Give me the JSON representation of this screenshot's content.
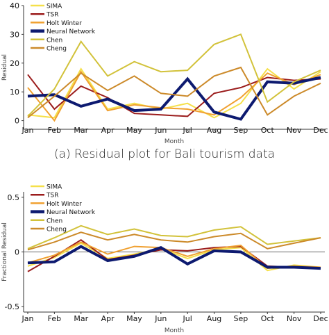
{
  "caption_a": "(a) Residual plot for Bali tourism data",
  "chart_data": [
    {
      "type": "line",
      "xlabel": "Month",
      "ylabel": "Residual",
      "categories": [
        "Jan",
        "Feb",
        "Mar",
        "Apr",
        "May",
        "Jun",
        "Jul",
        "Aug",
        "Sep",
        "Oct",
        "Nov",
        "Dec"
      ],
      "ylim": [
        -3,
        40
      ],
      "yticks": [
        "0",
        "10",
        "20",
        "30",
        "40"
      ],
      "ytick_values": [
        0,
        10,
        20,
        30,
        40
      ],
      "grid": false,
      "legend_position": "top-left",
      "series": [
        {
          "name": "SIMA",
          "color": "#f5e04a",
          "width": 2,
          "values": [
            2,
            1,
            18,
            4,
            6,
            4,
            6,
            1,
            6,
            18,
            11,
            17
          ]
        },
        {
          "name": "TSR",
          "color": "#9b1c1c",
          "width": 2,
          "values": [
            16,
            4,
            12,
            8,
            2.5,
            2,
            1.5,
            9.5,
            11.5,
            15,
            14,
            14.5
          ]
        },
        {
          "name": "Holt Winter",
          "color": "#f0a030",
          "width": 2,
          "values": [
            11.5,
            0,
            17,
            3.5,
            5.5,
            4.5,
            4,
            2,
            8,
            16.5,
            12.5,
            16
          ]
        },
        {
          "name": "Neural Network",
          "color": "#0d1a70",
          "width": 4,
          "values": [
            8.5,
            9,
            5,
            7.5,
            3.5,
            4,
            14.5,
            3,
            0.5,
            13.5,
            13,
            15
          ]
        },
        {
          "name": "Chen",
          "color": "#d2c23a",
          "width": 2,
          "values": [
            1.5,
            11,
            27.5,
            15.5,
            20.5,
            17,
            17.5,
            26.5,
            30,
            6.5,
            13.5,
            17.5
          ]
        },
        {
          "name": "Cheng",
          "color": "#cc8a2a",
          "width": 2,
          "values": [
            1,
            8.5,
            16.5,
            10.5,
            15.5,
            9.5,
            8.5,
            15.5,
            18.5,
            2,
            8.5,
            13
          ]
        }
      ]
    },
    {
      "type": "line",
      "xlabel": "Month",
      "ylabel": "Fractional Residual",
      "categories": [
        "Jan",
        "Feb",
        "Mar",
        "Apr",
        "May",
        "Jun",
        "Jul",
        "Aug",
        "Sep",
        "Oct",
        "Nov",
        "Dec"
      ],
      "ylim": [
        -0.55,
        0.55
      ],
      "yticks": [
        "-0.5",
        "0",
        "0.5"
      ],
      "ytick_values": [
        -0.5,
        0,
        0.5
      ],
      "zero_line": true,
      "grid": false,
      "legend_position": "top-left",
      "series": [
        {
          "name": "SIMA",
          "color": "#f5e04a",
          "width": 2,
          "values": [
            -0.13,
            -0.05,
            0.08,
            -0.06,
            -0.02,
            0.03,
            -0.06,
            0.02,
            0.04,
            -0.17,
            -0.12,
            -0.14
          ]
        },
        {
          "name": "TSR",
          "color": "#9b1c1c",
          "width": 2,
          "values": [
            -0.18,
            -0.04,
            0.11,
            -0.07,
            -0.03,
            0.02,
            0.01,
            0.04,
            0.05,
            -0.13,
            -0.14,
            -0.14
          ]
        },
        {
          "name": "Holt Winter",
          "color": "#f0a030",
          "width": 2,
          "values": [
            -0.1,
            -0.03,
            0.09,
            -0.02,
            0.05,
            0.04,
            -0.04,
            0.03,
            0.06,
            -0.15,
            -0.13,
            -0.14
          ]
        },
        {
          "name": "Neural Network",
          "color": "#0d1a70",
          "width": 4,
          "values": [
            -0.1,
            -0.09,
            0.05,
            -0.08,
            -0.04,
            0.04,
            -0.11,
            0.01,
            0.0,
            -0.14,
            -0.14,
            -0.15
          ]
        },
        {
          "name": "Chen",
          "color": "#d2c23a",
          "width": 2,
          "values": [
            0.03,
            0.13,
            0.24,
            0.16,
            0.21,
            0.15,
            0.14,
            0.2,
            0.23,
            0.07,
            0.1,
            0.13
          ]
        },
        {
          "name": "Cheng",
          "color": "#cc8a2a",
          "width": 2,
          "values": [
            0.02,
            0.09,
            0.18,
            0.11,
            0.16,
            0.11,
            0.09,
            0.14,
            0.17,
            0.03,
            0.08,
            0.13
          ]
        }
      ]
    }
  ]
}
